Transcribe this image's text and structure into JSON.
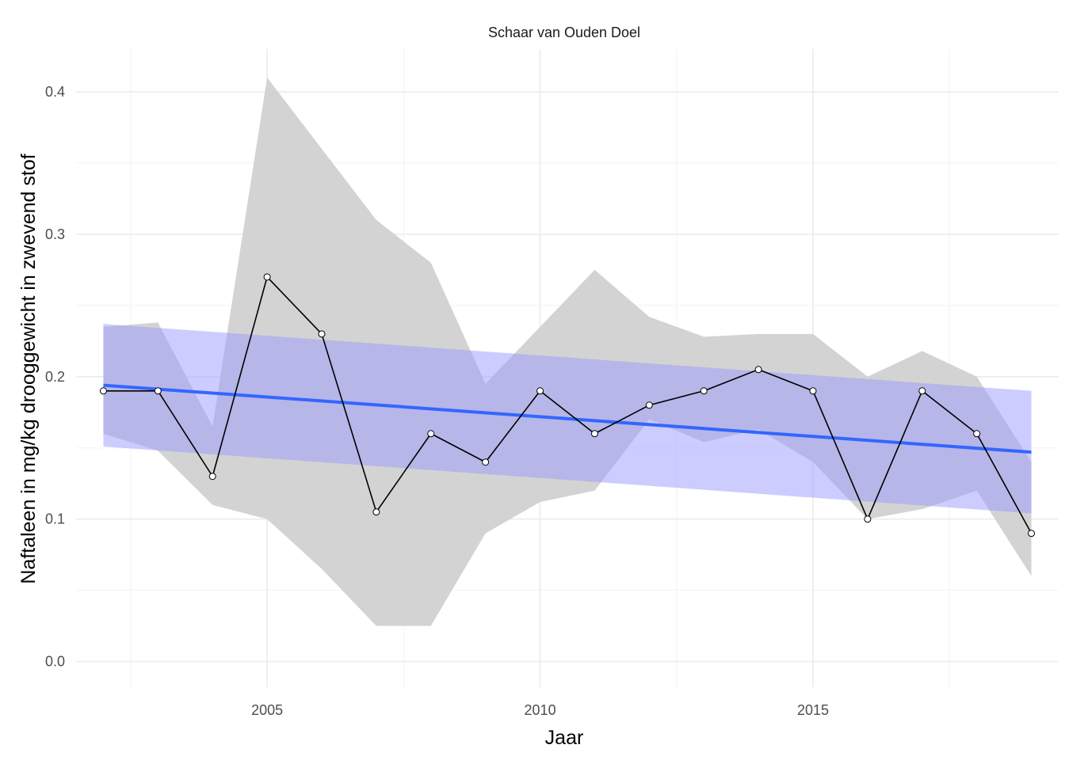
{
  "chart_data": {
    "type": "line",
    "title": "Schaar van Ouden Doel",
    "xlabel": "Jaar",
    "ylabel": "Naftaleen in mg/kg drooggewicht in zwevend stof",
    "xlim": [
      2001.5,
      2019.5
    ],
    "ylim": [
      -0.018,
      0.43
    ],
    "x_ticks": [
      2005,
      2010,
      2015
    ],
    "y_ticks": [
      0.0,
      0.1,
      0.2,
      0.3,
      0.4
    ],
    "y_tick_labels": [
      "0.0",
      "0.1",
      "0.2",
      "0.3",
      "0.4"
    ],
    "grid": true,
    "series": [
      {
        "kind": "observed",
        "x": [
          2002,
          2003,
          2004,
          2005,
          2006,
          2007,
          2008,
          2009,
          2010,
          2011,
          2012,
          2013,
          2014,
          2015,
          2016,
          2017,
          2018,
          2019
        ],
        "values": [
          0.19,
          0.19,
          0.13,
          0.27,
          0.23,
          0.105,
          0.16,
          0.14,
          0.19,
          0.16,
          0.18,
          0.19,
          0.205,
          0.19,
          0.1,
          0.19,
          0.16,
          0.09
        ],
        "color": "#000000"
      },
      {
        "kind": "observed-range",
        "x": [
          2002,
          2003,
          2004,
          2005,
          2006,
          2007,
          2008,
          2009,
          2010,
          2011,
          2012,
          2013,
          2014,
          2015,
          2016,
          2017,
          2018,
          2019
        ],
        "lower": [
          0.16,
          0.148,
          0.11,
          0.1,
          0.065,
          0.025,
          0.025,
          0.09,
          0.112,
          0.12,
          0.17,
          0.154,
          0.163,
          0.14,
          0.1,
          0.107,
          0.12,
          0.06
        ],
        "upper": [
          0.235,
          0.238,
          0.165,
          0.41,
          0.36,
          0.31,
          0.28,
          0.195,
          0.235,
          0.275,
          0.242,
          0.228,
          0.23,
          0.23,
          0.2,
          0.218,
          0.2,
          0.14
        ],
        "color": "#d3d3d3"
      },
      {
        "kind": "trend",
        "x": [
          2002,
          2019
        ],
        "values": [
          0.194,
          0.147
        ],
        "ci_lower": [
          0.151,
          0.104
        ],
        "ci_upper": [
          0.237,
          0.19
        ],
        "color": "#3366ff",
        "ci_color": "#9999ff"
      }
    ]
  }
}
